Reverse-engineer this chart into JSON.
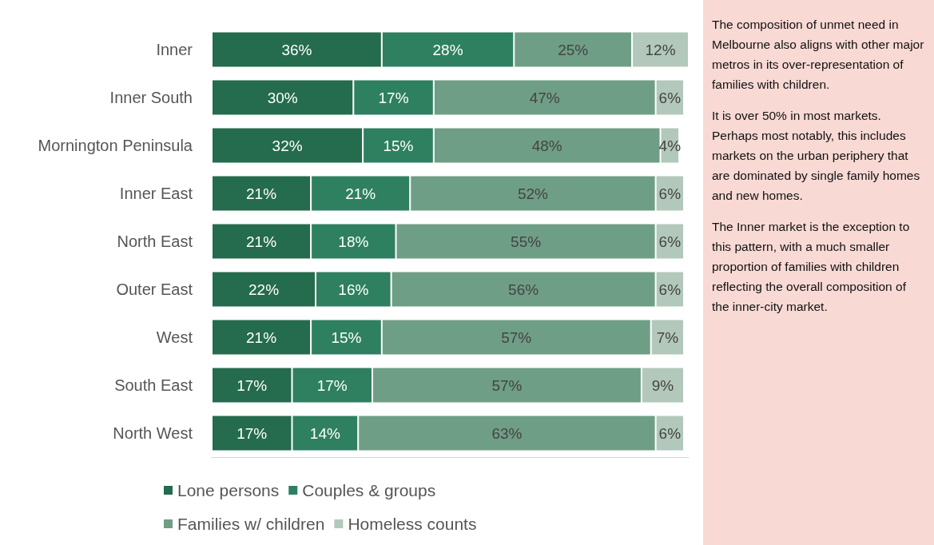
{
  "chart_data": [
    {
      "type": "bar",
      "orientation": "horizontal",
      "stacked": true,
      "legend": "bottom",
      "tick_labels": "y",
      "categories": [
        "Inner",
        "Inner South",
        "Mornington Peninsula",
        "Inner East",
        "North East",
        "Outer East",
        "West",
        "South East",
        "North West"
      ],
      "series": [
        {
          "name": "Lone persons",
          "color": "#256b4e",
          "values": [
            36,
            30,
            32,
            21,
            21,
            22,
            21,
            17,
            17
          ],
          "value_labels": [
            "36%",
            "30%",
            "32%",
            "21%",
            "21%",
            "22%",
            "21%",
            "17%",
            "17%"
          ]
        },
        {
          "name": "Couples & groups",
          "color": "#2e8060",
          "values": [
            28,
            17,
            15,
            21,
            18,
            16,
            15,
            17,
            14
          ],
          "value_labels": [
            "28%",
            "17%",
            "15%",
            "21%",
            "18%",
            "16%",
            "15%",
            "17%",
            "14%"
          ]
        },
        {
          "name": "Families w/ children",
          "color": "#6f9e86",
          "values": [
            25,
            47,
            48,
            52,
            55,
            56,
            57,
            57,
            63
          ],
          "value_labels": [
            "25%",
            "47%",
            "48%",
            "52%",
            "55%",
            "56%",
            "57%",
            "57%",
            "63%"
          ]
        },
        {
          "name": "Homeless counts",
          "color": "#b2c8bb",
          "values": [
            12,
            6,
            4,
            6,
            6,
            6,
            7,
            9,
            6
          ],
          "value_labels": [
            "12%",
            "6%",
            "4%",
            "6%",
            "6%",
            "6%",
            "7%",
            "9%",
            "6%"
          ]
        }
      ]
    },
    {
      "type": "other",
      "annotations": [
        "The composition of unmet need in Melbourne also aligns with other major metros in its over-representation of families with children.",
        "It is over 50% in most markets. Perhaps most notably, this includes markets on the urban periphery that are dominated by single family homes and new homes.",
        "The Inner market is the exception to this pattern, with a much smaller proportion of families with children reflecting the overall composition of the inner-city market."
      ]
    }
  ]
}
